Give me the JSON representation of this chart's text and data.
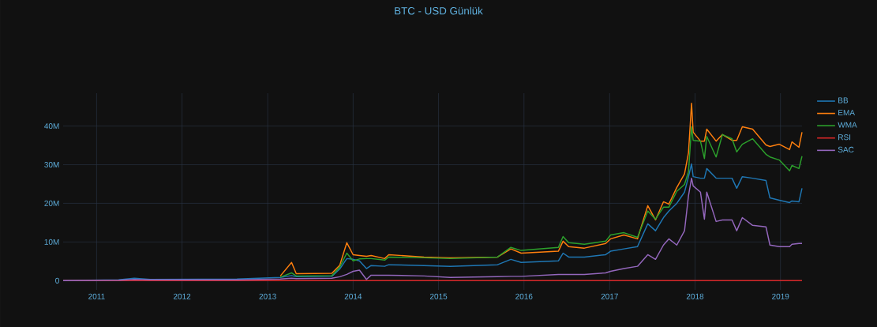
{
  "chart_data": {
    "type": "line",
    "title": "BTC - USD Günlük",
    "x": [
      "2010-08-11",
      "2011-04-05",
      "2011-06-11",
      "2011-08-18",
      "2012-08-23",
      "2013-02-24",
      "2013-04-13",
      "2013-05-03",
      "2013-10-02",
      "2013-11-05",
      "2013-12-05",
      "2014-01-01",
      "2014-01-28",
      "2014-02-27",
      "2014-03-19",
      "2014-05-16",
      "2014-06-02",
      "2014-10-31",
      "2015-02-20",
      "2015-09-10",
      "2015-11-06",
      "2015-12-20",
      "2016-05-27",
      "2016-06-16",
      "2016-07-10",
      "2016-09-15",
      "2016-12-15",
      "2017-01-05",
      "2017-03-03",
      "2017-04-30",
      "2017-06-13",
      "2017-07-16",
      "2017-08-19",
      "2017-09-11",
      "2017-10-15",
      "2017-11-17",
      "2017-12-04",
      "2017-12-17",
      "2017-12-24",
      "2018-01-24",
      "2018-02-10",
      "2018-02-20",
      "2018-04-01",
      "2018-04-28",
      "2018-06-08",
      "2018-06-28",
      "2018-07-22",
      "2018-09-04",
      "2018-10-31",
      "2018-11-17",
      "2018-12-27",
      "2019-02-09",
      "2019-02-19",
      "2019-03-21",
      "2019-04-03"
    ],
    "series": [
      {
        "name": "BB",
        "color": "#1f77b4",
        "values": [
          0,
          0.2,
          0.6,
          0.3,
          0.4,
          0.8,
          1.3,
          1.0,
          1.1,
          3.0,
          5.7,
          5.5,
          5.1,
          3.1,
          3.9,
          3.7,
          4.1,
          3.9,
          3.7,
          4.1,
          5.5,
          4.7,
          5.1,
          7.1,
          6.1,
          6.1,
          6.7,
          7.6,
          8.2,
          8.8,
          14.7,
          12.9,
          16.3,
          18.0,
          20.0,
          22.9,
          26.9,
          30.2,
          26.9,
          26.5,
          26.5,
          29.0,
          26.5,
          26.5,
          26.5,
          23.9,
          26.9,
          26.5,
          25.9,
          21.4,
          20.8,
          20.2,
          20.6,
          20.4,
          23.9
        ]
      },
      {
        "name": "EMA",
        "color": "#ff7f0e",
        "values": [
          null,
          null,
          null,
          null,
          null,
          1.2,
          4.7,
          1.8,
          1.9,
          4.0,
          9.8,
          6.7,
          6.5,
          6.3,
          6.5,
          5.7,
          6.7,
          6.1,
          5.9,
          6.1,
          8.2,
          7.1,
          7.6,
          10.2,
          8.8,
          8.4,
          9.6,
          10.8,
          11.8,
          10.8,
          19.4,
          15.7,
          20.4,
          19.8,
          24.1,
          27.6,
          33.1,
          45.9,
          38.4,
          36.1,
          36.1,
          39.2,
          36.1,
          37.8,
          36.3,
          36.3,
          39.8,
          39.2,
          35.1,
          34.7,
          35.3,
          33.9,
          35.9,
          34.5,
          38.4
        ]
      },
      {
        "name": "WMA",
        "color": "#2ca02c",
        "values": [
          null,
          null,
          null,
          null,
          null,
          0.9,
          2.0,
          1.2,
          1.3,
          3.5,
          7.1,
          5.1,
          5.6,
          5.7,
          5.7,
          5.3,
          6.1,
          5.9,
          5.7,
          6.1,
          8.6,
          7.8,
          8.6,
          11.4,
          9.8,
          9.4,
          10.2,
          11.8,
          12.4,
          11.2,
          18.0,
          15.9,
          19.0,
          19.0,
          23.1,
          24.9,
          28.2,
          39.8,
          36.3,
          36.1,
          31.6,
          37.3,
          32.0,
          37.8,
          36.7,
          33.3,
          35.3,
          36.7,
          32.7,
          32.0,
          31.2,
          28.4,
          29.8,
          29.0,
          32.2
        ]
      },
      {
        "name": "RSI",
        "color": "#d62728",
        "values": [
          0,
          0,
          0,
          0,
          0,
          0,
          0,
          0,
          0,
          0,
          0,
          0,
          0,
          0,
          0,
          0,
          0,
          0,
          0,
          0,
          0,
          0,
          0,
          0,
          0,
          0,
          0,
          0,
          0,
          0,
          0,
          0,
          0,
          0,
          0,
          0,
          0,
          0,
          0,
          0,
          0,
          0,
          0,
          0,
          0,
          0,
          0,
          0,
          0,
          0,
          0,
          0,
          0,
          0,
          0
        ]
      },
      {
        "name": "SAC",
        "color": "#9467bd",
        "values": [
          0,
          0.1,
          0.3,
          0.2,
          0.2,
          0.4,
          0.6,
          0.5,
          0.6,
          1.0,
          1.6,
          2.4,
          2.7,
          0.3,
          1.4,
          1.4,
          1.4,
          1.2,
          0.8,
          1.0,
          1.1,
          1.1,
          1.6,
          1.6,
          1.6,
          1.6,
          2.0,
          2.4,
          3.1,
          3.7,
          6.7,
          5.5,
          9.2,
          10.8,
          9.2,
          12.9,
          22.0,
          26.5,
          24.5,
          22.9,
          15.9,
          22.9,
          15.3,
          15.7,
          15.7,
          12.9,
          16.3,
          14.3,
          13.9,
          9.2,
          8.8,
          8.8,
          9.4,
          9.6,
          9.6
        ]
      }
    ],
    "xlim": [
      "2010-08-11",
      "2019-04-03"
    ],
    "xticks": [
      "2011",
      "2012",
      "2013",
      "2014",
      "2015",
      "2016",
      "2017",
      "2018",
      "2019"
    ],
    "ylim": [
      -2.4,
      48.5
    ],
    "yticks": [
      0,
      {
        "value": 10,
        "label": "10M"
      },
      {
        "value": 20,
        "label": "20M"
      },
      {
        "value": 30,
        "label": "30M"
      },
      {
        "value": 40,
        "label": "40M"
      }
    ],
    "grid": true,
    "legend": "right",
    "line_style": "solid"
  }
}
